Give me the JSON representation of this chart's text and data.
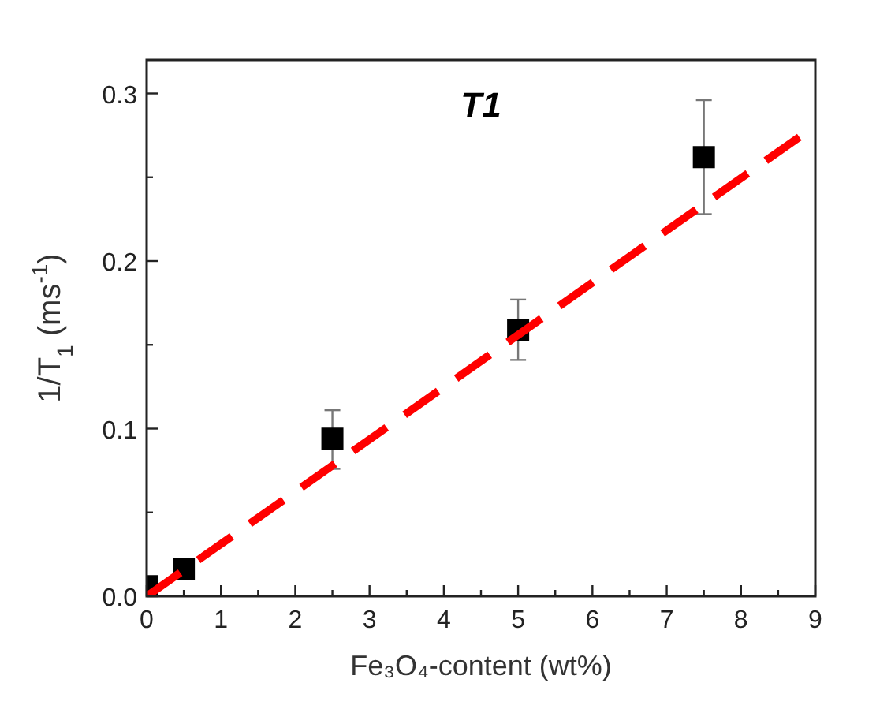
{
  "chart_data": {
    "type": "scatter",
    "title": "T1",
    "xlabel": "Fe₃O₄-content (wt%)",
    "ylabel": "1/T$_{1}$ (ms$^{-1}$)",
    "xlim": [
      0,
      9
    ],
    "ylim": [
      0,
      0.32
    ],
    "xticks": [
      0,
      {
        "value": 0.5,
        "label": null
      },
      1,
      {
        "value": 1.5,
        "label": null
      },
      2,
      {
        "value": 2.5,
        "label": null
      },
      3,
      {
        "value": 3.5,
        "label": null
      },
      4,
      {
        "value": 4.5,
        "label": null
      },
      5,
      {
        "value": 5.5,
        "label": null
      },
      6,
      {
        "value": 6.5,
        "label": null
      },
      7,
      {
        "value": 7.5,
        "label": null
      },
      8,
      {
        "value": 8.5,
        "label": null
      },
      9
    ],
    "yticks": [
      {
        "value": 0,
        "label": "0.0"
      },
      {
        "value": 0.05,
        "label": null
      },
      0.1,
      {
        "value": 0.15,
        "label": null
      },
      0.2,
      {
        "value": 0.25,
        "label": null
      },
      0.3
    ],
    "grid": false,
    "series": [
      {
        "color": "#000000",
        "marker": "square",
        "x": [
          0,
          0.5,
          2.5,
          5,
          7.5
        ],
        "values": [
          0.006,
          0.016,
          0.094,
          0.159,
          0.262
        ],
        "errors": [
          null,
          null,
          [
            0.076,
            0.111
          ],
          [
            0.141,
            0.177
          ],
          [
            0.228,
            0.296
          ]
        ]
      },
      {
        "type": "line",
        "color": "#ff0000",
        "line_style": "dashed",
        "marker": "none",
        "x": [
          0,
          8.85
        ],
        "values": [
          0,
          0.276
        ]
      }
    ]
  }
}
